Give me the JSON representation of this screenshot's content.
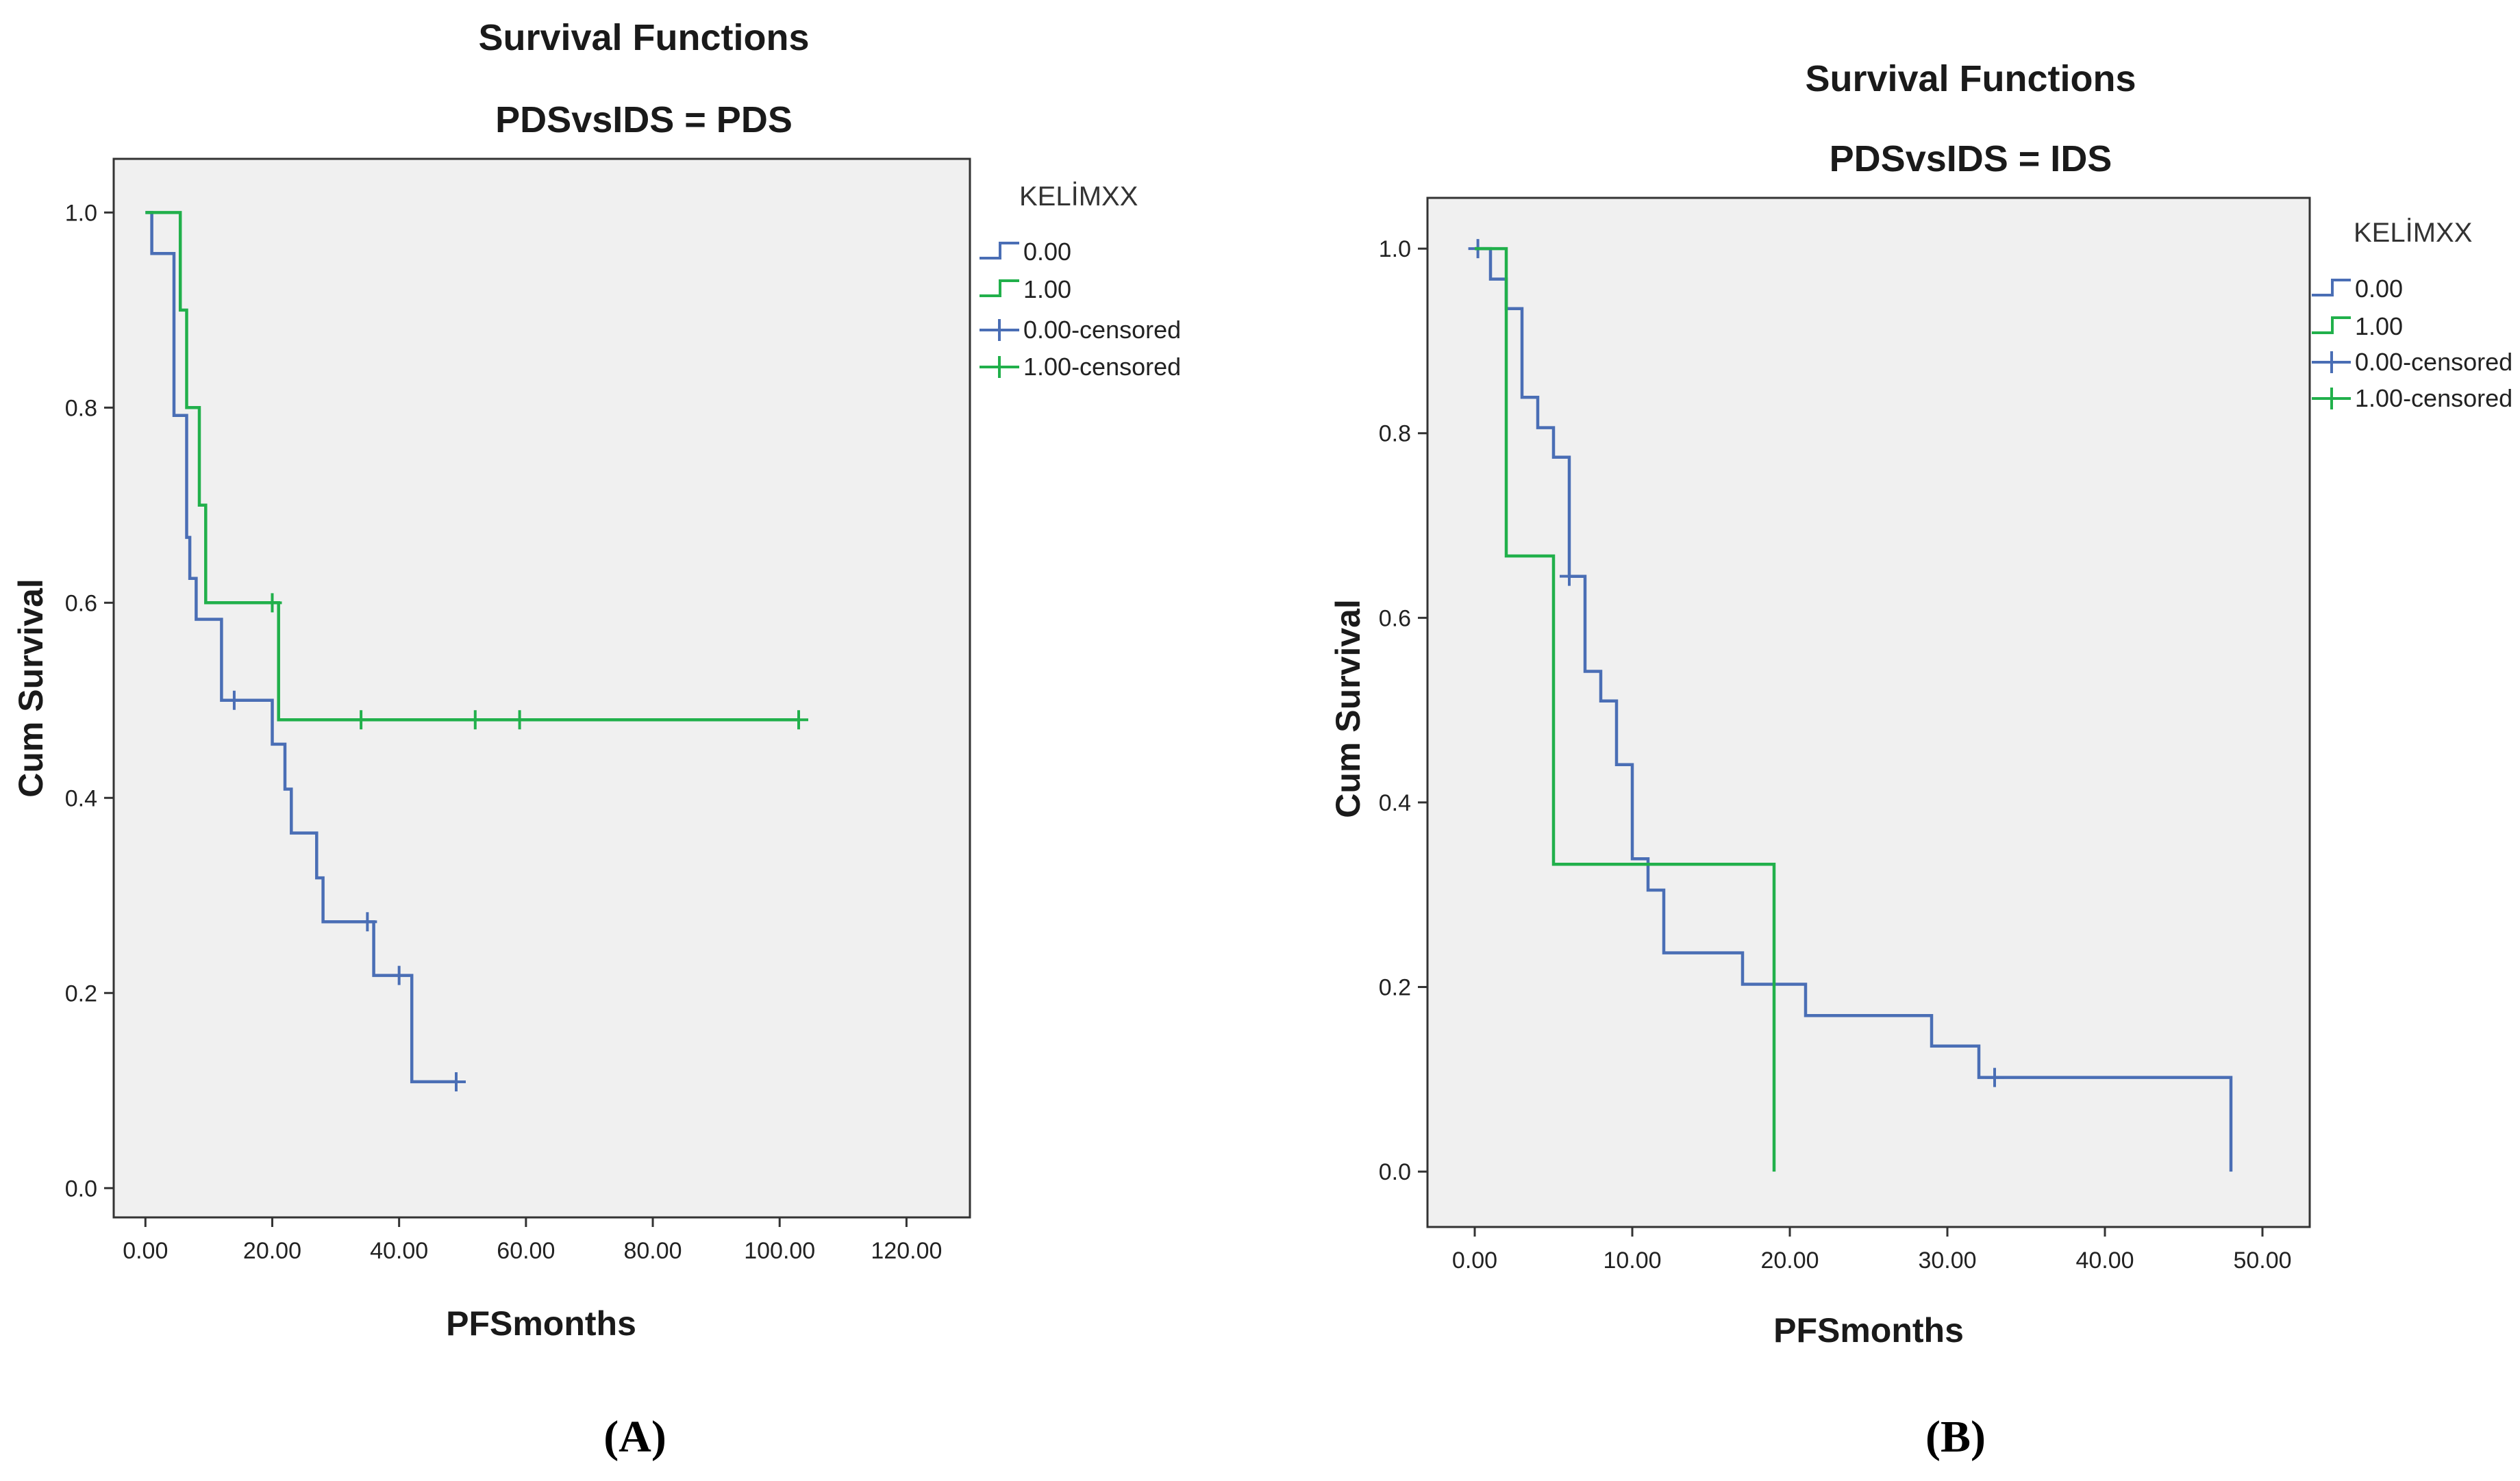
{
  "colors": {
    "group0": "#4a6eb5",
    "group1": "#21b04b",
    "plot_background": "#f0f0f0",
    "frame": "#333333"
  },
  "chart_data": [
    {
      "type": "line",
      "subtype": "kaplan-meier",
      "title": "Survival Functions",
      "subtitle": "PDSvsIDS = PDS",
      "xlabel": "PFSmonths",
      "ylabel": "Cum Survival",
      "xlim": [
        -5,
        130
      ],
      "ylim": [
        -0.03,
        1.055
      ],
      "x_ticks": [
        0,
        20,
        40,
        60,
        80,
        100,
        120
      ],
      "x_tick_labels": [
        "0.00",
        "20.00",
        "40.00",
        "60.00",
        "80.00",
        "100.00",
        "120.00"
      ],
      "y_ticks": [
        0,
        0.2,
        0.4,
        0.6,
        0.8,
        1.0
      ],
      "y_tick_labels": [
        "0.0",
        "0.2",
        "0.4",
        "0.6",
        "0.8",
        "1.0"
      ],
      "legend": {
        "title": "KELİMXX",
        "entries": [
          "0.00",
          "1.00",
          "0.00-censored",
          "1.00-censored"
        ]
      },
      "series": [
        {
          "name": "0.00",
          "color": "#4a6eb5",
          "points": [
            [
              0,
              1.0
            ],
            [
              1,
              1.0
            ],
            [
              1,
              0.958
            ],
            [
              4.5,
              0.958
            ],
            [
              4.5,
              0.792
            ],
            [
              6.5,
              0.792
            ],
            [
              6.5,
              0.667
            ],
            [
              7,
              0.667
            ],
            [
              7,
              0.625
            ],
            [
              8,
              0.625
            ],
            [
              8,
              0.583
            ],
            [
              12,
              0.583
            ],
            [
              12,
              0.5
            ],
            [
              20,
              0.5
            ],
            [
              20,
              0.455
            ],
            [
              22,
              0.455
            ],
            [
              22,
              0.409
            ],
            [
              23,
              0.409
            ],
            [
              23,
              0.364
            ],
            [
              27,
              0.364
            ],
            [
              27,
              0.318
            ],
            [
              28,
              0.318
            ],
            [
              28,
              0.273
            ],
            [
              36,
              0.273
            ],
            [
              36,
              0.218
            ],
            [
              42,
              0.218
            ],
            [
              42,
              0.109
            ],
            [
              49,
              0.109
            ]
          ],
          "censored": [
            [
              14,
              0.5
            ],
            [
              35,
              0.273
            ],
            [
              40,
              0.218
            ],
            [
              49,
              0.109
            ]
          ]
        },
        {
          "name": "1.00",
          "color": "#21b04b",
          "points": [
            [
              0,
              1.0
            ],
            [
              5.5,
              1.0
            ],
            [
              5.5,
              0.9
            ],
            [
              6.5,
              0.9
            ],
            [
              6.5,
              0.8
            ],
            [
              8.5,
              0.8
            ],
            [
              8.5,
              0.7
            ],
            [
              9.5,
              0.7
            ],
            [
              9.5,
              0.6
            ],
            [
              21,
              0.6
            ],
            [
              21,
              0.48
            ],
            [
              103,
              0.48
            ]
          ],
          "censored": [
            [
              20,
              0.6
            ],
            [
              34,
              0.48
            ],
            [
              52,
              0.48
            ],
            [
              59,
              0.48
            ],
            [
              103,
              0.48
            ]
          ]
        }
      ]
    },
    {
      "type": "line",
      "subtype": "kaplan-meier",
      "title": "Survival Functions",
      "subtitle": "PDSvsIDS = IDS",
      "xlabel": "PFSmonths",
      "ylabel": "Cum Survival",
      "xlim": [
        -3,
        53
      ],
      "ylim": [
        -0.06,
        1.055
      ],
      "x_ticks": [
        0,
        10,
        20,
        30,
        40,
        50
      ],
      "x_tick_labels": [
        "0.00",
        "10.00",
        "20.00",
        "30.00",
        "40.00",
        "50.00"
      ],
      "y_ticks": [
        0,
        0.2,
        0.4,
        0.6,
        0.8,
        1.0
      ],
      "y_tick_labels": [
        "0.0",
        "0.2",
        "0.4",
        "0.6",
        "0.8",
        "1.0"
      ],
      "legend": {
        "title": "KELİMXX",
        "entries": [
          "0.00",
          "1.00",
          "0.00-censored",
          "1.00-censored"
        ]
      },
      "series": [
        {
          "name": "0.00",
          "color": "#4a6eb5",
          "points": [
            [
              0,
              1.0
            ],
            [
              1,
              1.0
            ],
            [
              1,
              0.967
            ],
            [
              2,
              0.967
            ],
            [
              2,
              0.935
            ],
            [
              3,
              0.935
            ],
            [
              3,
              0.839
            ],
            [
              4,
              0.839
            ],
            [
              4,
              0.806
            ],
            [
              5,
              0.806
            ],
            [
              5,
              0.774
            ],
            [
              6,
              0.774
            ],
            [
              6,
              0.645
            ],
            [
              7,
              0.645
            ],
            [
              7,
              0.542
            ],
            [
              8,
              0.542
            ],
            [
              8,
              0.51
            ],
            [
              9,
              0.51
            ],
            [
              9,
              0.441
            ],
            [
              10,
              0.441
            ],
            [
              10,
              0.339
            ],
            [
              11,
              0.339
            ],
            [
              11,
              0.305
            ],
            [
              12,
              0.305
            ],
            [
              12,
              0.237
            ],
            [
              17,
              0.237
            ],
            [
              17,
              0.203
            ],
            [
              21,
              0.203
            ],
            [
              21,
              0.169
            ],
            [
              29,
              0.169
            ],
            [
              29,
              0.136
            ],
            [
              32,
              0.136
            ],
            [
              32,
              0.102
            ],
            [
              48,
              0.102
            ],
            [
              48,
              0.0
            ]
          ],
          "censored": [
            [
              0.2,
              1.0
            ],
            [
              6,
              0.645
            ],
            [
              33,
              0.102
            ]
          ]
        },
        {
          "name": "1.00",
          "color": "#21b04b",
          "points": [
            [
              0,
              1.0
            ],
            [
              2,
              1.0
            ],
            [
              2,
              0.667
            ],
            [
              5,
              0.667
            ],
            [
              5,
              0.333
            ],
            [
              19,
              0.333
            ],
            [
              19,
              0.0
            ]
          ],
          "censored": []
        }
      ]
    }
  ],
  "panels": [
    {
      "label": "(A)"
    },
    {
      "label": "(B)"
    }
  ]
}
